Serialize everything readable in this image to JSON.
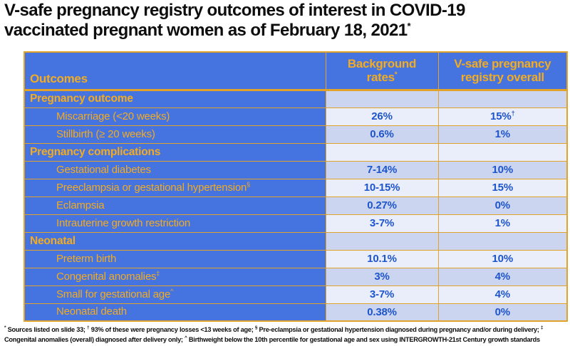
{
  "title": {
    "line1": "V-safe pregnancy registry outcomes of interest in COVID-19",
    "line2": "vaccinated pregnant women as of February 18, 2021",
    "sup": "*"
  },
  "colors": {
    "blue": "#4573DF",
    "gold": "#F3AC21",
    "border": "#E2A32A",
    "value_text": "#1D55CC",
    "band_light": "#EAEDFA",
    "band_dark": "#CCD5F0"
  },
  "table": {
    "headers": {
      "outcomes": "Outcomes",
      "background": {
        "label": "Background rates",
        "sup": "*"
      },
      "vsafe": "V-safe pregnancy registry overall"
    },
    "rows": [
      {
        "type": "section",
        "label": "Pregnancy outcome"
      },
      {
        "type": "data",
        "label": "Miscarriage (<20 weeks)",
        "background": "26%",
        "vsafe": "15%",
        "vsafe_sup": "†"
      },
      {
        "type": "data",
        "label": "Stillbirth (≥ 20 weeks)",
        "background": "0.6%",
        "vsafe": "1%"
      },
      {
        "type": "section",
        "label": "Pregnancy complications"
      },
      {
        "type": "data",
        "label": "Gestational diabetes",
        "background": "7-14%",
        "vsafe": "10%"
      },
      {
        "type": "data",
        "label": "Preeclampsia or gestational hypertension",
        "label_sup": "§",
        "background": "10-15%",
        "vsafe": "15%"
      },
      {
        "type": "data",
        "label": "Eclampsia",
        "background": "0.27%",
        "vsafe": "0%"
      },
      {
        "type": "data",
        "label": "Intrauterine growth restriction",
        "background": "3-7%",
        "vsafe": "1%"
      },
      {
        "type": "section",
        "label": "Neonatal"
      },
      {
        "type": "data",
        "label": "Preterm birth",
        "background": "10.1%",
        "vsafe": "10%"
      },
      {
        "type": "data",
        "label": "Congenital anomalies",
        "label_sup": "‡",
        "background": "3%",
        "vsafe": "4%"
      },
      {
        "type": "data",
        "label": "Small for gestational age",
        "label_sup": "^",
        "background": "3-7%",
        "vsafe": "4%"
      },
      {
        "type": "data",
        "label": "Neonatal death",
        "background": "0.38%",
        "vsafe": "0%"
      }
    ]
  },
  "footnote": {
    "line1": [
      {
        "sup": "*",
        "text": " Sources listed on slide 33; "
      },
      {
        "sup": "†",
        "text": " 93% of these were pregnancy losses <13 weeks of age; "
      },
      {
        "sup": "§",
        "text": " Pre-eclampsia or gestational hypertension diagnosed during pregnancy and/or during delivery; "
      },
      {
        "sup": "‡",
        "text": ""
      }
    ],
    "line2": [
      {
        "sup": "",
        "text": "Congenital anomalies (overall) diagnosed after delivery only; "
      },
      {
        "sup": "^",
        "text": " Birthweight below the 10th percentile for gestational age and sex using INTERGROWTH-21st Century growth standards"
      }
    ]
  }
}
